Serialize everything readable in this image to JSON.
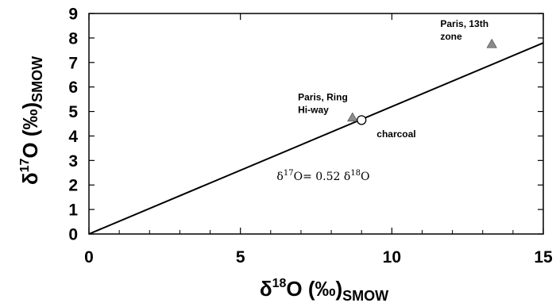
{
  "chart_data": {
    "type": "scatter",
    "xlabel": {
      "prefix": "δ",
      "sup": "18",
      "main": "O (‰)",
      "sub": "SMOW"
    },
    "ylabel": {
      "prefix": "δ",
      "sup": "17",
      "main": "O (‰)",
      "sub": "SMOW"
    },
    "xlim": [
      0,
      15
    ],
    "ylim": [
      0,
      9
    ],
    "xticks": [
      0,
      5,
      10,
      15
    ],
    "xtick_labels": [
      "0",
      "5",
      "10",
      "15"
    ],
    "xminor": [
      1,
      2,
      3,
      4,
      6,
      7,
      8,
      9,
      11,
      12,
      13,
      14
    ],
    "yticks": [
      0,
      1,
      2,
      3,
      4,
      5,
      6,
      7,
      8,
      9
    ],
    "ytick_labels": [
      "0",
      "1",
      "2",
      "3",
      "4",
      "5",
      "6",
      "7",
      "8",
      "9"
    ],
    "grid": false,
    "line": {
      "slope": 0.52,
      "x": [
        0,
        15
      ]
    },
    "equation": {
      "lhs_prefix": "δ",
      "lhs_sup": "17",
      "lhs_main": "O= 0.52 ",
      "rhs_prefix": "δ",
      "rhs_sup": "18",
      "rhs_main": "O",
      "x": 6.2,
      "y": 2.2
    },
    "points": [
      {
        "label_lines": [
          "Paris, Ring",
          "Hi-way"
        ],
        "x": 8.7,
        "y": 4.75,
        "marker": "triangle",
        "color": "#8c8c8c",
        "label_x": 6.9,
        "label_y": 5.45
      },
      {
        "label_lines": [
          "Paris, 13th",
          "zone"
        ],
        "x": 13.3,
        "y": 7.75,
        "marker": "triangle",
        "color": "#8c8c8c",
        "label_x": 11.6,
        "label_y": 8.45
      },
      {
        "label_lines": [
          "charcoal"
        ],
        "x": 9.0,
        "y": 4.65,
        "marker": "circle",
        "color": "#000000",
        "label_x": 9.5,
        "label_y": 3.95
      }
    ]
  }
}
